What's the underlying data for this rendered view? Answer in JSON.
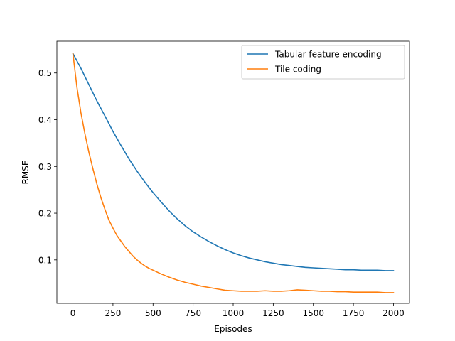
{
  "chart_data": {
    "type": "line",
    "title": "",
    "xlabel": "Episodes",
    "ylabel": "RMSE",
    "xlim": [
      -100,
      2100
    ],
    "ylim": [
      0.007,
      0.568
    ],
    "xticks": [
      0,
      250,
      500,
      750,
      1000,
      1250,
      1500,
      1750,
      2000
    ],
    "yticks": [
      0.1,
      0.2,
      0.3,
      0.4,
      0.5
    ],
    "xtick_labels": [
      "0",
      "250",
      "500",
      "750",
      "1000",
      "1250",
      "1500",
      "1750",
      "2000"
    ],
    "ytick_labels": [
      "0.1",
      "0.2",
      "0.3",
      "0.4",
      "0.5"
    ],
    "grid": false,
    "legend_position": "top-right",
    "series": [
      {
        "name": "Tabular feature encoding",
        "color": "#1f77b4",
        "x": [
          0,
          50,
          100,
          150,
          200,
          250,
          300,
          350,
          400,
          450,
          500,
          550,
          600,
          650,
          700,
          750,
          800,
          850,
          900,
          950,
          1000,
          1050,
          1100,
          1150,
          1200,
          1250,
          1300,
          1350,
          1400,
          1450,
          1500,
          1550,
          1600,
          1650,
          1700,
          1750,
          1800,
          1850,
          1900,
          1950,
          2000
        ],
        "y": [
          0.542,
          0.51,
          0.475,
          0.44,
          0.408,
          0.375,
          0.345,
          0.316,
          0.29,
          0.266,
          0.244,
          0.224,
          0.205,
          0.188,
          0.173,
          0.16,
          0.149,
          0.139,
          0.13,
          0.122,
          0.115,
          0.109,
          0.104,
          0.1,
          0.096,
          0.093,
          0.09,
          0.088,
          0.086,
          0.084,
          0.083,
          0.082,
          0.081,
          0.08,
          0.079,
          0.079,
          0.078,
          0.078,
          0.078,
          0.077,
          0.077
        ]
      },
      {
        "name": "Tile coding",
        "color": "#ff7f0e",
        "x": [
          0,
          25,
          50,
          75,
          100,
          125,
          150,
          175,
          200,
          225,
          250,
          275,
          300,
          325,
          350,
          375,
          400,
          425,
          450,
          475,
          500,
          550,
          600,
          650,
          700,
          750,
          800,
          850,
          900,
          950,
          1000,
          1050,
          1100,
          1150,
          1200,
          1250,
          1300,
          1350,
          1400,
          1450,
          1500,
          1550,
          1600,
          1650,
          1700,
          1750,
          1800,
          1850,
          1900,
          1950,
          2000
        ],
        "y": [
          0.542,
          0.47,
          0.415,
          0.37,
          0.33,
          0.295,
          0.262,
          0.233,
          0.208,
          0.185,
          0.168,
          0.152,
          0.14,
          0.128,
          0.118,
          0.108,
          0.1,
          0.093,
          0.087,
          0.082,
          0.078,
          0.07,
          0.063,
          0.057,
          0.052,
          0.048,
          0.044,
          0.041,
          0.038,
          0.035,
          0.034,
          0.033,
          0.033,
          0.033,
          0.034,
          0.033,
          0.033,
          0.034,
          0.036,
          0.035,
          0.034,
          0.033,
          0.033,
          0.032,
          0.032,
          0.031,
          0.031,
          0.031,
          0.031,
          0.03,
          0.03
        ]
      }
    ]
  }
}
